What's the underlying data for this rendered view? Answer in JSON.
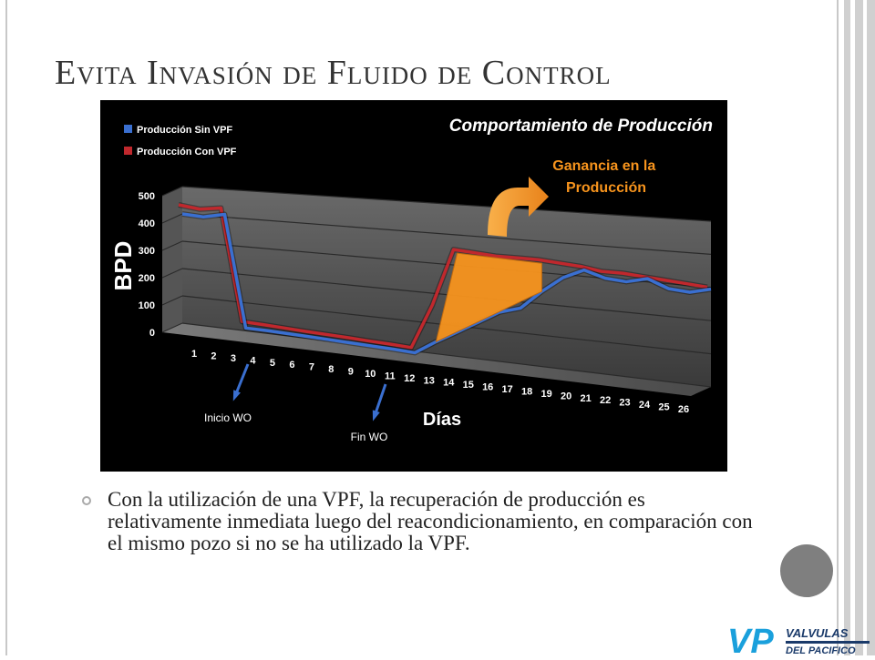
{
  "slide": {
    "title": "Evita Invasión de Fluido de Control",
    "bullet": "Con la utilización de una VPF, la recuperación de producción es relativamente inmediata luego del reacondicionamiento, en comparación con el mismo pozo si no se ha utilizado la VPF."
  },
  "logo": {
    "mark": "VP",
    "line1": "VALVULAS",
    "line2": "DEL PACIFICO"
  },
  "chart_data": {
    "type": "line",
    "title": "Comportamiento de Producción",
    "xlabel": "Días",
    "ylabel": "BPD",
    "ylim": [
      0,
      500
    ],
    "yticks": [
      0,
      100,
      200,
      300,
      400,
      500
    ],
    "categories": [
      "1",
      "2",
      "3",
      "4",
      "5",
      "6",
      "7",
      "8",
      "9",
      "10",
      "11",
      "12",
      "13",
      "14",
      "15",
      "16",
      "17",
      "18",
      "19",
      "20",
      "21",
      "22",
      "23",
      "24",
      "25",
      "26"
    ],
    "series": [
      {
        "name": "Producción Sin VPF",
        "color": "#3a6fd0",
        "values": [
          400,
          395,
          410,
          10,
          10,
          8,
          6,
          4,
          2,
          0,
          -2,
          -5,
          40,
          80,
          120,
          160,
          180,
          240,
          290,
          320,
          300,
          295,
          310,
          285,
          280,
          295
        ]
      },
      {
        "name": "Producción Con VPF",
        "color": "#c0282d",
        "values": [
          420,
          410,
          420,
          20,
          18,
          15,
          12,
          10,
          8,
          5,
          3,
          0,
          150,
          340,
          335,
          330,
          330,
          330,
          325,
          320,
          310,
          310,
          305,
          300,
          295,
          290
        ]
      }
    ],
    "legend": "top-left",
    "annotations": [
      {
        "text": "Ganancia en la Producción",
        "color": "#f7941d"
      },
      {
        "text": "Inicio WO",
        "day": 4
      },
      {
        "text": "Fin WO",
        "day": 12
      }
    ],
    "grid": true
  }
}
